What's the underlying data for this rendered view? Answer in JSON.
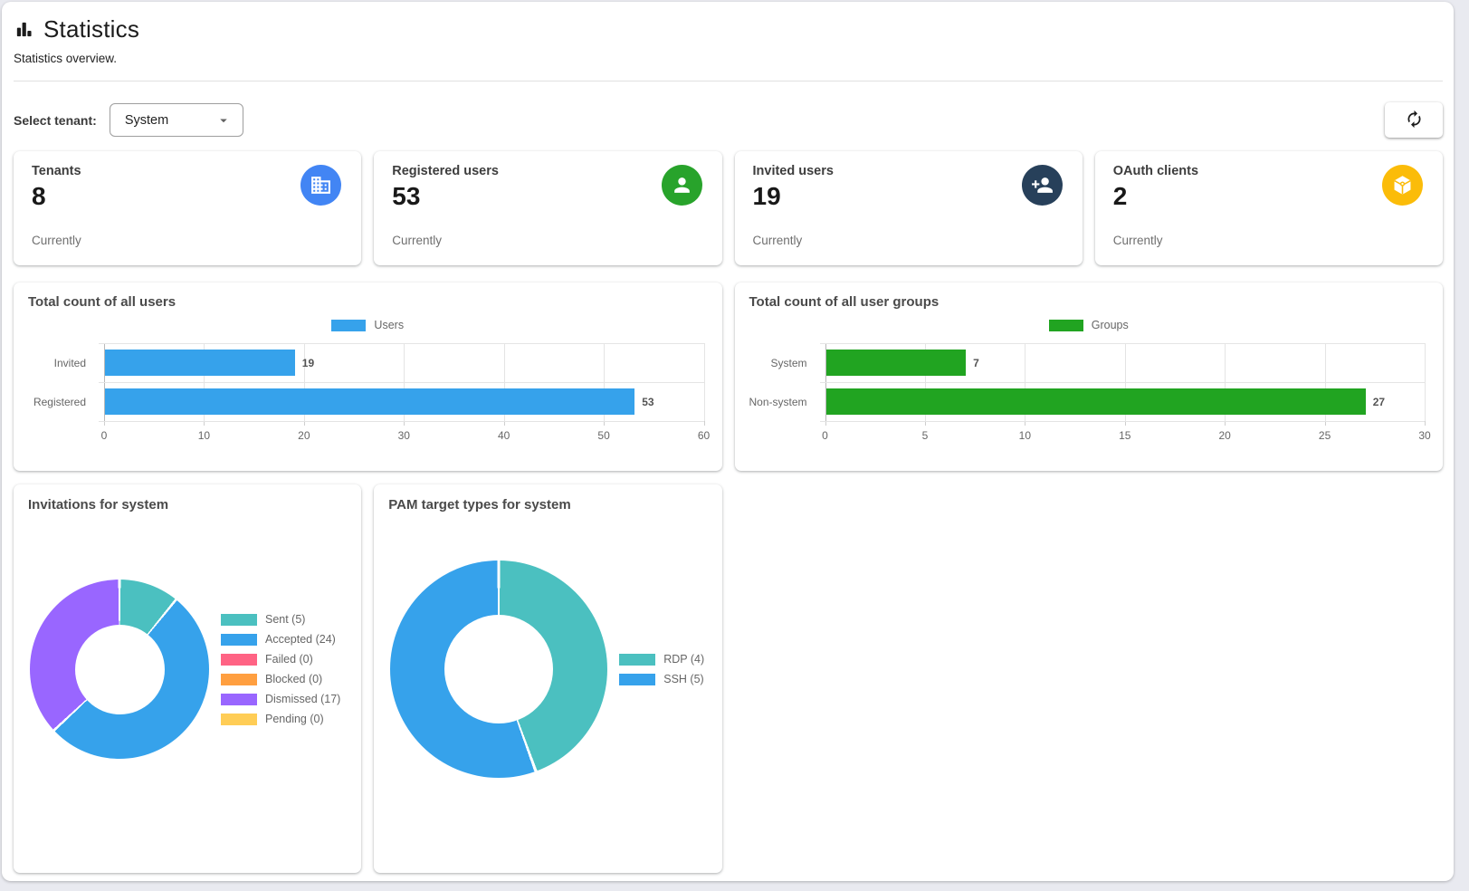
{
  "header": {
    "title": "Statistics",
    "subtitle": "Statistics overview."
  },
  "toolbar": {
    "tenant_label": "Select tenant:",
    "tenant_value": "System",
    "refresh_icon": "sync-icon"
  },
  "stat_cards": [
    {
      "label": "Tenants",
      "value": "8",
      "caption": "Currently",
      "icon": "building-icon",
      "icon_bg": "#4285F4"
    },
    {
      "label": "Registered users",
      "value": "53",
      "caption": "Currently",
      "icon": "person-icon",
      "icon_bg": "#28A32B"
    },
    {
      "label": "Invited users",
      "value": "19",
      "caption": "Currently",
      "icon": "person-add-icon",
      "icon_bg": "#27405A"
    },
    {
      "label": "OAuth clients",
      "value": "2",
      "caption": "Currently",
      "icon": "cube-icon",
      "icon_bg": "#FBBC09"
    }
  ],
  "chart_data": [
    {
      "type": "bar",
      "orientation": "horizontal",
      "title": "Total count of all users",
      "legend": [
        {
          "label": "Users",
          "color": "#36A2EB"
        }
      ],
      "legend_position": "top",
      "categories": [
        "Invited",
        "Registered"
      ],
      "values": [
        19,
        53
      ],
      "bar_color": "#36A2EB",
      "xlim": [
        0,
        60
      ],
      "xticks": [
        0,
        10,
        20,
        30,
        40,
        50,
        60
      ],
      "grid": true,
      "data_labels": [
        "19",
        "53"
      ]
    },
    {
      "type": "bar",
      "orientation": "horizontal",
      "title": "Total count of all user groups",
      "legend": [
        {
          "label": "Groups",
          "color": "#21A421"
        }
      ],
      "legend_position": "top",
      "categories": [
        "System",
        "Non-system"
      ],
      "values": [
        7,
        27
      ],
      "bar_color": "#21A421",
      "xlim": [
        0,
        30
      ],
      "xticks": [
        0,
        5,
        10,
        15,
        20,
        25,
        30
      ],
      "grid": true,
      "data_labels": [
        "7",
        "27"
      ]
    },
    {
      "type": "pie",
      "donut": true,
      "title": "Invitations for system",
      "legend_position": "right",
      "segments": [
        {
          "label": "Sent (5)",
          "value": 5,
          "color": "#4BC0C0"
        },
        {
          "label": "Accepted (24)",
          "value": 24,
          "color": "#36A2EB"
        },
        {
          "label": "Failed (0)",
          "value": 0,
          "color": "#FF6384"
        },
        {
          "label": "Blocked (0)",
          "value": 0,
          "color": "#FF9F40"
        },
        {
          "label": "Dismissed (17)",
          "value": 17,
          "color": "#9966FF"
        },
        {
          "label": "Pending (0)",
          "value": 0,
          "color": "#FFCD56"
        }
      ]
    },
    {
      "type": "pie",
      "donut": true,
      "title": "PAM target types for system",
      "legend_position": "right",
      "segments": [
        {
          "label": "RDP (4)",
          "value": 4,
          "color": "#4BC0C0"
        },
        {
          "label": "SSH (5)",
          "value": 5,
          "color": "#36A2EB"
        }
      ]
    }
  ]
}
